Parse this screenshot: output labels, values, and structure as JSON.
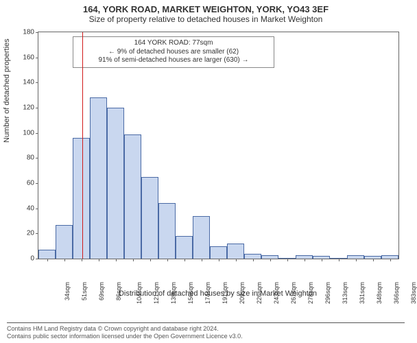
{
  "title_main": "164, YORK ROAD, MARKET WEIGHTON, YORK, YO43 3EF",
  "title_sub": "Size of property relative to detached houses in Market Weighton",
  "chart": {
    "type": "histogram",
    "ylabel": "Number of detached properties",
    "xlabel": "Distribution of detached houses by size in Market Weighton",
    "ylim": [
      0,
      180
    ],
    "ytick_step": 20,
    "yticks": [
      0,
      20,
      40,
      60,
      80,
      100,
      120,
      140,
      160,
      180
    ],
    "bar_color": "#c9d7ef",
    "bar_border": "#4a6aa5",
    "refline_color": "#d11a1a",
    "background_color": "#ffffff",
    "border_color": "#666666",
    "categories": [
      "34sqm",
      "51sqm",
      "69sqm",
      "86sqm",
      "104sqm",
      "121sqm",
      "139sqm",
      "156sqm",
      "174sqm",
      "191sqm",
      "209sqm",
      "226sqm",
      "243sqm",
      "261sqm",
      "278sqm",
      "296sqm",
      "313sqm",
      "331sqm",
      "348sqm",
      "366sqm",
      "383sqm"
    ],
    "values": [
      7,
      27,
      96,
      128,
      120,
      99,
      65,
      44,
      18,
      34,
      10,
      12,
      4,
      3,
      0,
      3,
      2,
      0,
      3,
      2,
      3
    ],
    "reference_bin_index": 2,
    "annotation": {
      "line1": "164 YORK ROAD: 77sqm",
      "line2": "← 9% of detached houses are smaller (62)",
      "line3": "91% of semi-detached houses are larger (630) →"
    },
    "label_fontsize": 11,
    "tick_fontsize": 10
  },
  "footer_line1": "Contains HM Land Registry data © Crown copyright and database right 2024.",
  "footer_line2": "Contains public sector information licensed under the Open Government Licence v3.0."
}
